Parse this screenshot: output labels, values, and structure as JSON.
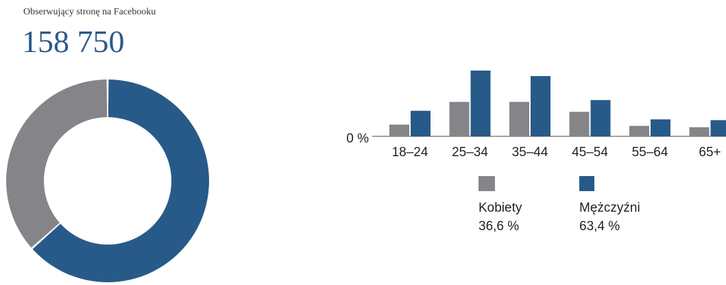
{
  "header": {
    "kicker": "Obserwujący stronę na Facebooku",
    "total": "158 750"
  },
  "colors": {
    "women": "#858589",
    "men": "#285a89",
    "total_text": "#2a5a8a"
  },
  "chart_data": [
    {
      "type": "pie",
      "variant": "donut",
      "slices": [
        {
          "name": "Kobiety",
          "value": 36.6,
          "color": "#858589"
        },
        {
          "name": "Mężczyźni",
          "value": 63.4,
          "color": "#285a89"
        }
      ]
    },
    {
      "type": "bar",
      "categories": [
        "18–24",
        "25–34",
        "35–44",
        "45–54",
        "55–64",
        "65+"
      ],
      "series": [
        {
          "name": "Kobiety",
          "share_label": "36,6 %",
          "color": "#858589",
          "values": [
            4.5,
            13.2,
            13.2,
            9.4,
            4.0,
            3.5
          ]
        },
        {
          "name": "Mężczyźni",
          "share_label": "63,4 %",
          "color": "#285a89",
          "values": [
            9.8,
            25.2,
            23.1,
            13.9,
            6.5,
            6.2
          ]
        }
      ],
      "y_tick_label": "0 %",
      "ylim": [
        0,
        26
      ],
      "grid": false,
      "legend_position": "bottom"
    }
  ]
}
